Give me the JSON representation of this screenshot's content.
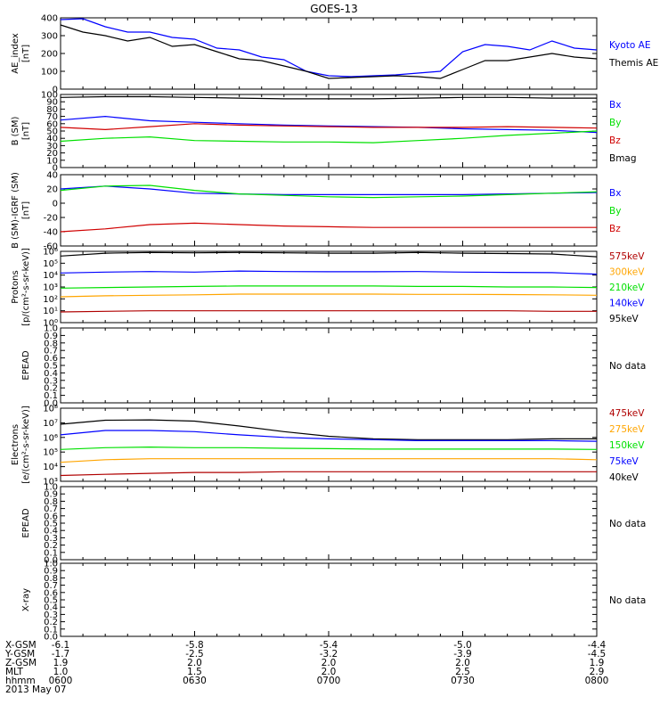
{
  "title": "GOES-13",
  "colors": {
    "black": "#000000",
    "blue": "#0000ff",
    "green": "#00e000",
    "red": "#d00000",
    "orange": "#ffa500",
    "darkred": "#b00000"
  },
  "chart_data": [
    {
      "type": "line",
      "id": "ae",
      "ylabel": [
        "AE_index",
        "[nT]"
      ],
      "ylim": [
        0,
        400
      ],
      "yticks": [
        {
          "v": 0,
          "t": "0"
        },
        {
          "v": 100,
          "t": "100"
        },
        {
          "v": 200,
          "t": "200"
        },
        {
          "v": 300,
          "t": "300"
        },
        {
          "v": 400,
          "t": "400"
        }
      ],
      "labels": [
        {
          "t": "Kyoto AE",
          "c": "blue"
        },
        {
          "t": "Themis AE",
          "c": "black"
        }
      ],
      "x": [
        0,
        5,
        10,
        15,
        20,
        25,
        30,
        35,
        40,
        45,
        50,
        55,
        60,
        65,
        70,
        75,
        80,
        85,
        90,
        95,
        100,
        105,
        110,
        115,
        120
      ],
      "series": [
        {
          "name": "Kyoto AE",
          "color": "blue",
          "values": [
            390,
            395,
            350,
            320,
            320,
            290,
            280,
            230,
            220,
            180,
            165,
            100,
            75,
            70,
            75,
            80,
            90,
            100,
            210,
            250,
            240,
            220,
            270,
            230,
            220
          ]
        },
        {
          "name": "Themis AE",
          "color": "black",
          "values": [
            360,
            320,
            300,
            270,
            290,
            240,
            250,
            210,
            170,
            160,
            130,
            100,
            60,
            65,
            70,
            75,
            70,
            60,
            110,
            160,
            160,
            180,
            200,
            180,
            170
          ]
        }
      ]
    },
    {
      "type": "line",
      "id": "bsm",
      "ylabel": [
        "B (SM)",
        "[nT]"
      ],
      "ylim": [
        0,
        100
      ],
      "yticks": [
        {
          "v": 0,
          "t": "0"
        },
        {
          "v": 10,
          "t": "10"
        },
        {
          "v": 20,
          "t": "20"
        },
        {
          "v": 30,
          "t": "30"
        },
        {
          "v": 40,
          "t": "40"
        },
        {
          "v": 50,
          "t": "50"
        },
        {
          "v": 60,
          "t": "60"
        },
        {
          "v": 70,
          "t": "70"
        },
        {
          "v": 80,
          "t": "80"
        },
        {
          "v": 90,
          "t": "90"
        },
        {
          "v": 100,
          "t": "100"
        }
      ],
      "labels": [
        {
          "t": "Bx",
          "c": "blue"
        },
        {
          "t": "By",
          "c": "green"
        },
        {
          "t": "Bz",
          "c": "red"
        },
        {
          "t": "Bmag",
          "c": "black"
        }
      ],
      "x": [
        0,
        10,
        20,
        30,
        40,
        50,
        60,
        70,
        80,
        90,
        100,
        110,
        120
      ],
      "series": [
        {
          "name": "Bx",
          "color": "blue",
          "values": [
            65,
            70,
            64,
            62,
            60,
            58,
            57,
            56,
            55,
            53,
            52,
            51,
            48
          ]
        },
        {
          "name": "By",
          "color": "green",
          "values": [
            36,
            40,
            42,
            37,
            36,
            35,
            35,
            34,
            37,
            40,
            44,
            47,
            50
          ]
        },
        {
          "name": "Bz",
          "color": "red",
          "values": [
            55,
            52,
            56,
            60,
            58,
            57,
            56,
            55,
            55,
            55,
            56,
            55,
            54
          ]
        },
        {
          "name": "Bmag",
          "color": "black",
          "values": [
            96,
            97,
            97,
            96,
            95,
            94,
            94,
            94,
            95,
            96,
            96,
            95,
            95
          ]
        }
      ]
    },
    {
      "type": "line",
      "id": "bigrf",
      "ylabel": [
        "B (SM)-IGRF (SM)",
        "[nT]"
      ],
      "ylim": [
        -60,
        40
      ],
      "yticks": [
        {
          "v": -60,
          "t": "-60"
        },
        {
          "v": -40,
          "t": "-40"
        },
        {
          "v": -20,
          "t": "-20"
        },
        {
          "v": 0,
          "t": "0"
        },
        {
          "v": 20,
          "t": "20"
        },
        {
          "v": 40,
          "t": "40"
        }
      ],
      "labels": [
        {
          "t": "Bx",
          "c": "blue"
        },
        {
          "t": "By",
          "c": "green"
        },
        {
          "t": "Bz",
          "c": "red"
        }
      ],
      "x": [
        0,
        10,
        20,
        30,
        40,
        50,
        60,
        70,
        80,
        90,
        100,
        110,
        120
      ],
      "series": [
        {
          "name": "Bx",
          "color": "blue",
          "values": [
            20,
            24,
            20,
            14,
            13,
            12,
            12,
            12,
            12,
            12,
            13,
            14,
            15
          ]
        },
        {
          "name": "By",
          "color": "green",
          "values": [
            18,
            24,
            25,
            18,
            13,
            11,
            9,
            8,
            9,
            10,
            12,
            14,
            16
          ]
        },
        {
          "name": "Bz",
          "color": "red",
          "values": [
            -40,
            -36,
            -30,
            -28,
            -30,
            -32,
            -33,
            -34,
            -34,
            -34,
            -34,
            -34,
            -34
          ]
        }
      ]
    },
    {
      "type": "line",
      "id": "protons",
      "log": true,
      "ylabel": [
        "Protons",
        "[p/(cm²-s-sr-keV)]"
      ],
      "ylim": [
        1,
        1000000
      ],
      "yticks": [
        {
          "v": 1,
          "t": "10⁰"
        },
        {
          "v": 10,
          "t": "10¹"
        },
        {
          "v": 100,
          "t": "10²"
        },
        {
          "v": 1000,
          "t": "10³"
        },
        {
          "v": 10000,
          "t": "10⁴"
        },
        {
          "v": 100000,
          "t": "10⁵"
        },
        {
          "v": 1000000,
          "t": "10⁶"
        }
      ],
      "labels": [
        {
          "t": "575keV",
          "c": "darkred"
        },
        {
          "t": "300keV",
          "c": "orange"
        },
        {
          "t": "210keV",
          "c": "green"
        },
        {
          "t": "140keV",
          "c": "blue"
        },
        {
          "t": "95keV",
          "c": "black"
        }
      ],
      "x": [
        0,
        10,
        20,
        30,
        40,
        50,
        60,
        70,
        80,
        90,
        100,
        110,
        120
      ],
      "series": [
        {
          "name": "95keV",
          "color": "black",
          "values": [
            400000,
            700000,
            800000,
            750000,
            800000,
            750000,
            700000,
            700000,
            800000,
            700000,
            650000,
            600000,
            350000
          ]
        },
        {
          "name": "140keV",
          "color": "blue",
          "values": [
            15000,
            18000,
            20000,
            18000,
            22000,
            20000,
            19000,
            19000,
            20000,
            18000,
            17000,
            16000,
            12000
          ]
        },
        {
          "name": "210keV",
          "color": "green",
          "values": [
            800,
            900,
            1000,
            1100,
            1200,
            1200,
            1200,
            1200,
            1100,
            1100,
            1000,
            1000,
            900
          ]
        },
        {
          "name": "300keV",
          "color": "orange",
          "values": [
            150,
            180,
            200,
            220,
            250,
            250,
            250,
            250,
            240,
            240,
            230,
            220,
            200
          ]
        },
        {
          "name": "575keV",
          "color": "darkred",
          "values": [
            8,
            9,
            10,
            10,
            10,
            10,
            10,
            10,
            10,
            10,
            10,
            9,
            9
          ]
        }
      ]
    },
    {
      "type": "line",
      "id": "epead1",
      "ylabel": [
        "EPEAD"
      ],
      "ylim": [
        0,
        1
      ],
      "yticks": [
        {
          "v": 0,
          "t": "0.0"
        },
        {
          "v": 0.1,
          "t": "0.1"
        },
        {
          "v": 0.2,
          "t": "0.2"
        },
        {
          "v": 0.3,
          "t": "0.3"
        },
        {
          "v": 0.4,
          "t": "0.4"
        },
        {
          "v": 0.5,
          "t": "0.5"
        },
        {
          "v": 0.6,
          "t": "0.6"
        },
        {
          "v": 0.7,
          "t": "0.7"
        },
        {
          "v": 0.8,
          "t": "0.8"
        },
        {
          "v": 0.9,
          "t": "0.9"
        },
        {
          "v": 1,
          "t": "1.0"
        }
      ],
      "nodata": "No data",
      "series": []
    },
    {
      "type": "line",
      "id": "electrons",
      "log": true,
      "ylabel": [
        "Electrons",
        "[e/(cm²-s-sr-keV)]"
      ],
      "ylim": [
        1000,
        100000000
      ],
      "yticks": [
        {
          "v": 1000,
          "t": "10³"
        },
        {
          "v": 10000,
          "t": "10⁴"
        },
        {
          "v": 100000,
          "t": "10⁵"
        },
        {
          "v": 1000000,
          "t": "10⁶"
        },
        {
          "v": 10000000,
          "t": "10⁷"
        },
        {
          "v": 100000000,
          "t": "10⁸"
        }
      ],
      "labels": [
        {
          "t": "475keV",
          "c": "darkred"
        },
        {
          "t": "275keV",
          "c": "orange"
        },
        {
          "t": "150keV",
          "c": "green"
        },
        {
          "t": "75keV",
          "c": "blue"
        },
        {
          "t": "40keV",
          "c": "black"
        }
      ],
      "x": [
        0,
        10,
        20,
        30,
        40,
        50,
        60,
        70,
        80,
        90,
        100,
        110,
        120
      ],
      "series": [
        {
          "name": "40keV",
          "color": "black",
          "values": [
            8000000,
            15000000,
            16000000,
            13000000,
            6000000,
            2500000,
            1200000,
            800000,
            700000,
            700000,
            700000,
            800000,
            800000
          ]
        },
        {
          "name": "75keV",
          "color": "blue",
          "values": [
            1500000,
            3000000,
            3000000,
            2500000,
            1500000,
            1000000,
            800000,
            700000,
            600000,
            600000,
            600000,
            600000,
            550000
          ]
        },
        {
          "name": "150keV",
          "color": "green",
          "values": [
            150000,
            200000,
            220000,
            200000,
            200000,
            180000,
            170000,
            160000,
            160000,
            160000,
            160000,
            160000,
            150000
          ]
        },
        {
          "name": "275keV",
          "color": "orange",
          "values": [
            20000,
            30000,
            35000,
            35000,
            35000,
            35000,
            35000,
            35000,
            35000,
            35000,
            35000,
            35000,
            30000
          ]
        },
        {
          "name": "475keV",
          "color": "darkred",
          "values": [
            2500,
            3000,
            3500,
            4000,
            4000,
            4500,
            4500,
            4500,
            4500,
            4500,
            4500,
            4500,
            4500
          ]
        }
      ]
    },
    {
      "type": "line",
      "id": "epead2",
      "ylabel": [
        "EPEAD"
      ],
      "ylim": [
        0,
        1
      ],
      "yticks": [
        {
          "v": 0,
          "t": "0.0"
        },
        {
          "v": 0.1,
          "t": "0.1"
        },
        {
          "v": 0.2,
          "t": "0.2"
        },
        {
          "v": 0.3,
          "t": "0.3"
        },
        {
          "v": 0.4,
          "t": "0.4"
        },
        {
          "v": 0.5,
          "t": "0.5"
        },
        {
          "v": 0.6,
          "t": "0.6"
        },
        {
          "v": 0.7,
          "t": "0.7"
        },
        {
          "v": 0.8,
          "t": "0.8"
        },
        {
          "v": 0.9,
          "t": "0.9"
        },
        {
          "v": 1,
          "t": "1.0"
        }
      ],
      "nodata": "No data",
      "series": []
    },
    {
      "type": "line",
      "id": "xray",
      "ylabel": [
        "X-ray"
      ],
      "ylim": [
        0,
        1
      ],
      "yticks": [
        {
          "v": 0,
          "t": "0.0"
        },
        {
          "v": 0.1,
          "t": "0.1"
        },
        {
          "v": 0.2,
          "t": "0.2"
        },
        {
          "v": 0.3,
          "t": "0.3"
        },
        {
          "v": 0.4,
          "t": "0.4"
        },
        {
          "v": 0.5,
          "t": "0.5"
        },
        {
          "v": 0.6,
          "t": "0.6"
        },
        {
          "v": 0.7,
          "t": "0.7"
        },
        {
          "v": 0.8,
          "t": "0.8"
        },
        {
          "v": 0.9,
          "t": "0.9"
        },
        {
          "v": 1,
          "t": "1.0"
        }
      ],
      "nodata": "No data",
      "series": []
    }
  ],
  "x_axis": {
    "range": [
      0,
      120
    ],
    "tick_minutes": [
      0,
      30,
      60,
      90,
      120
    ],
    "rows": [
      {
        "label": "X-GSM",
        "values": [
          "-6.1",
          "-5.8",
          "-5.4",
          "-5.0",
          "-4.4"
        ]
      },
      {
        "label": "Y-GSM",
        "values": [
          "-1.7",
          "-2.5",
          "-3.2",
          "-3.9",
          "-4.5"
        ]
      },
      {
        "label": "Z-GSM",
        "values": [
          "1.9",
          "2.0",
          "2.0",
          "2.0",
          "1.9"
        ]
      },
      {
        "label": "MLT",
        "values": [
          "1.0",
          "1.5",
          "2.0",
          "2.5",
          "2.9"
        ]
      },
      {
        "label": "hhmm",
        "values": [
          "0600",
          "0630",
          "0700",
          "0730",
          "0800"
        ]
      }
    ],
    "date": "2013 May 07"
  }
}
